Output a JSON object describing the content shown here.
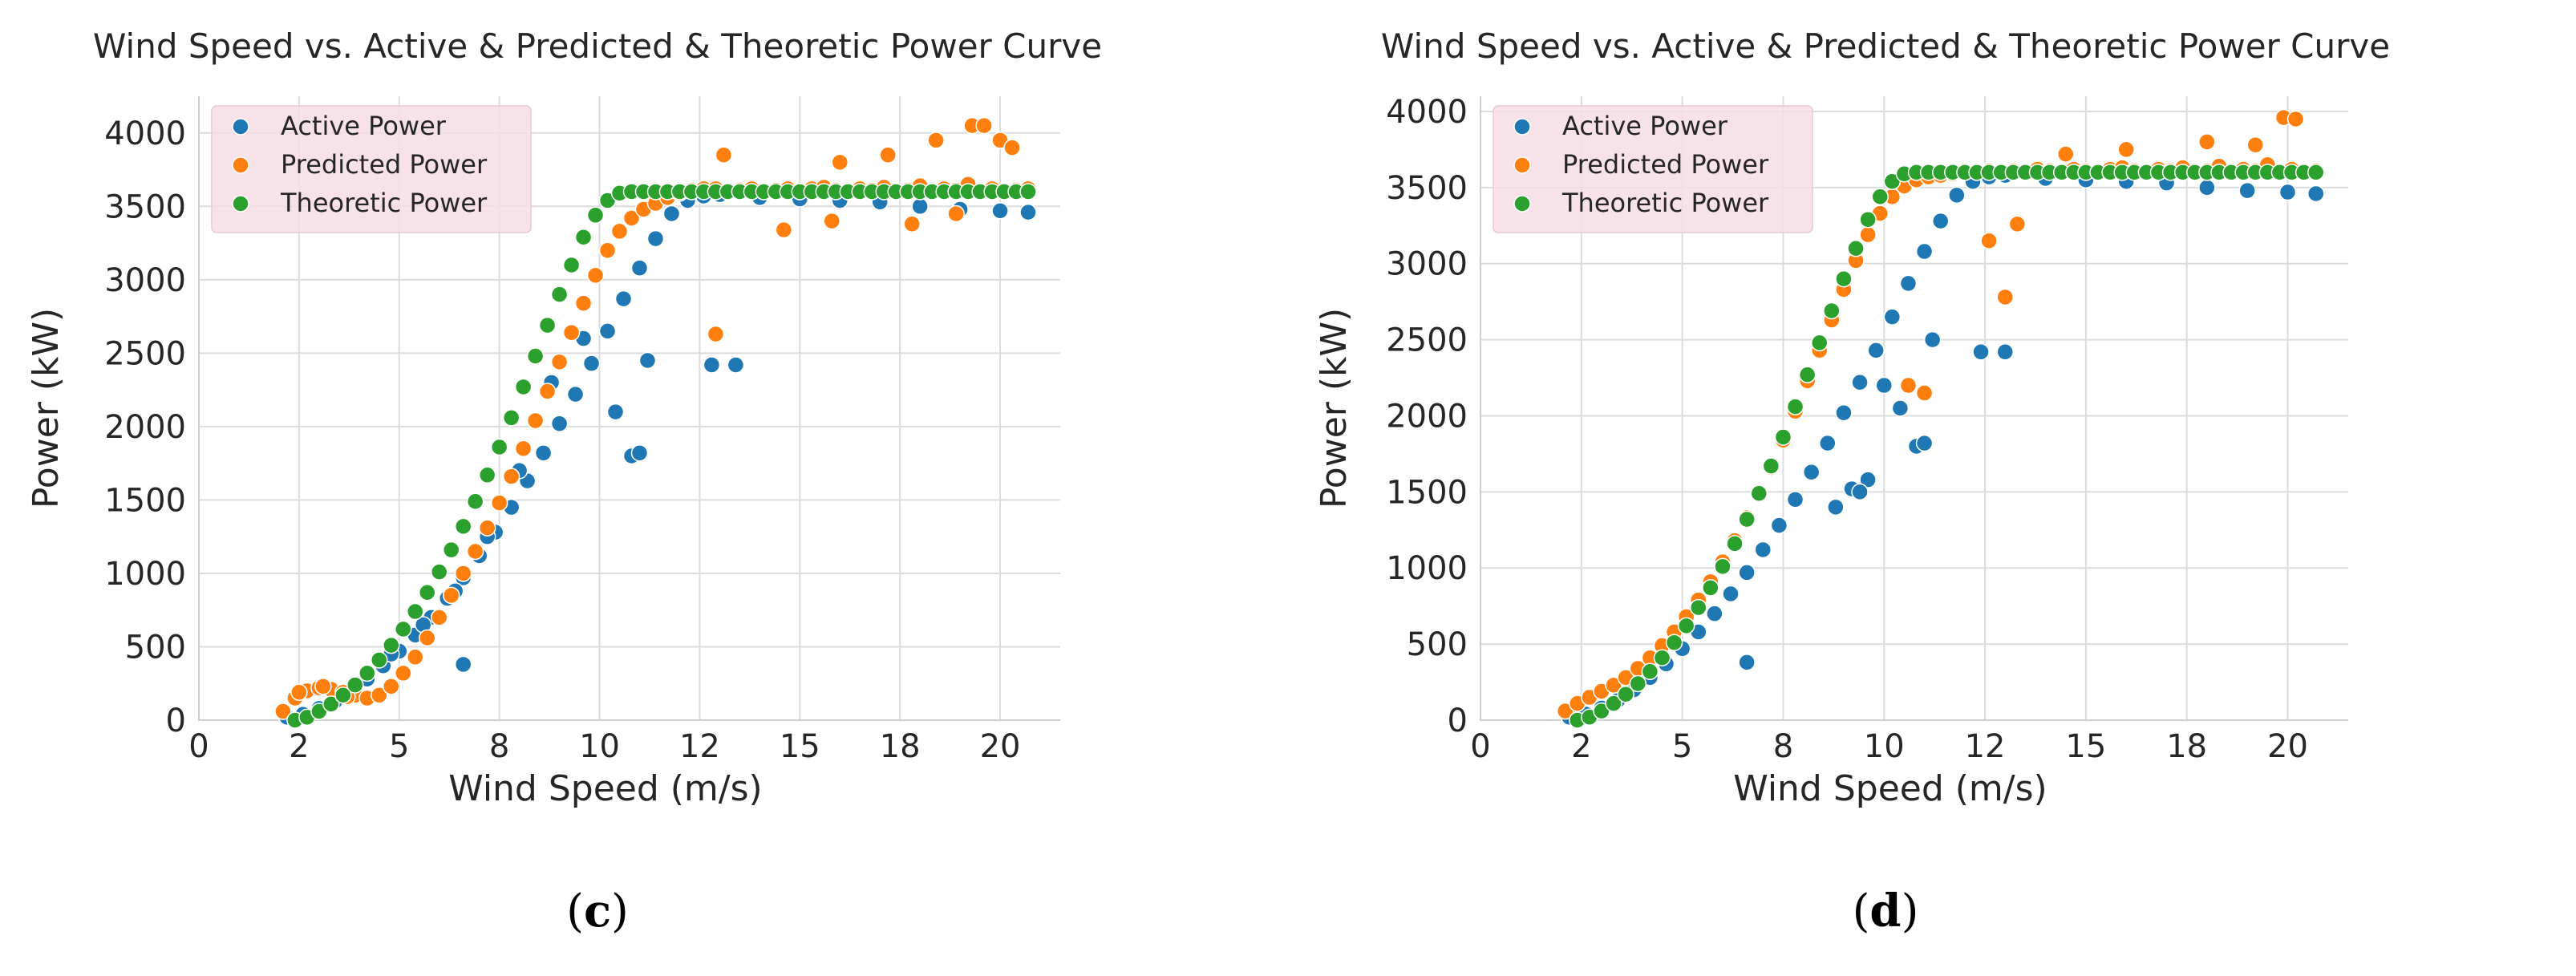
{
  "chart_data": [
    {
      "type": "scatter",
      "title": "Wind Speed vs. Active & Predicted & Theoretic Power Curve",
      "xlabel": "Wind Speed (m/s)",
      "ylabel": "Power (kW)",
      "panel_label": "c",
      "xlim": [
        0,
        21.5
      ],
      "ylim": [
        0,
        4250
      ],
      "xticks": [
        0,
        2.5,
        5,
        7.5,
        10,
        12.5,
        15,
        17.5,
        20
      ],
      "xticklabels": [
        "0",
        "2",
        "5",
        "8",
        "10",
        "12",
        "15",
        "18",
        "20"
      ],
      "yticks": [
        0,
        500,
        1000,
        1500,
        2000,
        2500,
        3000,
        3500,
        4000
      ],
      "yticklabels": [
        "0",
        "500",
        "1000",
        "1500",
        "2000",
        "2500",
        "3000",
        "3500",
        "4000"
      ],
      "grid": true,
      "legend_position": "top-left",
      "legend_bg": "#f7dde6",
      "series": [
        {
          "name": "Active Power",
          "color": "#1f77b4",
          "x": [
            2.2,
            2.6,
            3.0,
            3.4,
            3.8,
            4.2,
            4.6,
            5.0,
            5.4,
            5.8,
            6.2,
            6.6,
            7.0,
            7.4,
            7.8,
            8.2,
            8.6,
            9.0,
            9.4,
            9.8,
            10.2,
            10.6,
            11.0,
            11.4,
            11.8,
            12.2,
            12.6,
            13.0,
            14.0,
            15.0,
            16.0,
            17.0,
            18.0,
            19.0,
            20.0,
            20.7,
            4.8,
            5.6,
            6.4,
            7.2,
            8.0,
            8.8,
            9.6,
            10.4,
            10.8,
            11.0,
            11.2,
            12.8,
            13.4,
            6.6
          ],
          "y": [
            20,
            40,
            80,
            130,
            200,
            280,
            370,
            470,
            580,
            700,
            830,
            970,
            1120,
            1280,
            1450,
            1630,
            1820,
            2020,
            2220,
            2430,
            2650,
            2870,
            3080,
            3280,
            3450,
            3540,
            3570,
            3580,
            3560,
            3550,
            3540,
            3530,
            3500,
            3480,
            3470,
            3460,
            450,
            650,
            880,
            1250,
            1700,
            2300,
            2600,
            2100,
            1800,
            1820,
            2450,
            2420,
            2420,
            380
          ]
        },
        {
          "name": "Predicted Power",
          "color": "#ff7f0e",
          "x": [
            2.1,
            2.4,
            2.7,
            3.0,
            3.3,
            3.6,
            3.9,
            4.2,
            4.5,
            4.8,
            5.1,
            5.4,
            5.7,
            6.0,
            6.3,
            6.6,
            6.9,
            7.2,
            7.5,
            7.8,
            8.1,
            8.4,
            8.7,
            9.0,
            9.3,
            9.6,
            9.9,
            10.2,
            10.5,
            10.8,
            11.1,
            11.4,
            11.7,
            12.0,
            12.3,
            12.6,
            12.9,
            13.2,
            13.5,
            13.8,
            14.1,
            14.4,
            14.7,
            15.0,
            15.3,
            15.6,
            15.9,
            16.2,
            16.5,
            16.8,
            17.1,
            17.4,
            17.7,
            18.0,
            18.3,
            18.6,
            18.9,
            19.2,
            19.5,
            19.8,
            20.1,
            20.4,
            20.7,
            2.5,
            3.1,
            3.7,
            12.9,
            13.1,
            16.0,
            17.2,
            18.4,
            19.3,
            19.6,
            20.0,
            20.3,
            14.6,
            15.8,
            17.8,
            18.9
          ],
          "y": [
            60,
            150,
            200,
            220,
            210,
            190,
            170,
            150,
            170,
            230,
            320,
            430,
            560,
            700,
            850,
            1000,
            1150,
            1310,
            1480,
            1660,
            1850,
            2040,
            2240,
            2440,
            2640,
            2840,
            3030,
            3200,
            3330,
            3420,
            3480,
            3520,
            3560,
            3590,
            3610,
            3620,
            3620,
            3600,
            3610,
            3620,
            3600,
            3610,
            3620,
            3600,
            3620,
            3630,
            3610,
            3600,
            3620,
            3610,
            3630,
            3600,
            3610,
            3640,
            3600,
            3620,
            3610,
            3650,
            3600,
            3620,
            3600,
            3610,
            3620,
            190,
            230,
            160,
            2630,
            3850,
            3800,
            3850,
            3950,
            4050,
            4050,
            3950,
            3900,
            3340,
            3400,
            3380,
            3450
          ]
        },
        {
          "name": "Theoretic Power",
          "color": "#2ca02c",
          "x": [
            2.4,
            2.7,
            3.0,
            3.3,
            3.6,
            3.9,
            4.2,
            4.5,
            4.8,
            5.1,
            5.4,
            5.7,
            6.0,
            6.3,
            6.6,
            6.9,
            7.2,
            7.5,
            7.8,
            8.1,
            8.4,
            8.7,
            9.0,
            9.3,
            9.6,
            9.9,
            10.2,
            10.5,
            10.8,
            11.1,
            11.4,
            11.7,
            12.0,
            12.3,
            12.6,
            12.9,
            13.2,
            13.5,
            13.8,
            14.1,
            14.4,
            14.7,
            15.0,
            15.3,
            15.6,
            15.9,
            16.2,
            16.5,
            16.8,
            17.1,
            17.4,
            17.7,
            18.0,
            18.3,
            18.6,
            18.9,
            19.2,
            19.5,
            19.8,
            20.1,
            20.4,
            20.7
          ],
          "y": [
            0,
            20,
            60,
            110,
            170,
            240,
            320,
            410,
            510,
            620,
            740,
            870,
            1010,
            1160,
            1320,
            1490,
            1670,
            1860,
            2060,
            2270,
            2480,
            2690,
            2900,
            3100,
            3290,
            3440,
            3540,
            3590,
            3600,
            3600,
            3600,
            3600,
            3600,
            3600,
            3600,
            3600,
            3600,
            3600,
            3600,
            3600,
            3600,
            3600,
            3600,
            3600,
            3600,
            3600,
            3600,
            3600,
            3600,
            3600,
            3600,
            3600,
            3600,
            3600,
            3600,
            3600,
            3600,
            3600,
            3600,
            3600,
            3600,
            3600
          ]
        }
      ]
    },
    {
      "type": "scatter",
      "title": "Wind Speed vs. Active & Predicted & Theoretic Power Curve",
      "xlabel": "Wind Speed (m/s)",
      "ylabel": "Power (kW)",
      "panel_label": "d",
      "xlim": [
        0,
        21.5
      ],
      "ylim": [
        0,
        4100
      ],
      "xticks": [
        0,
        2.5,
        5,
        7.5,
        10,
        12.5,
        15,
        17.5,
        20
      ],
      "xticklabels": [
        "0",
        "2",
        "5",
        "8",
        "10",
        "12",
        "15",
        "18",
        "20"
      ],
      "yticks": [
        0,
        500,
        1000,
        1500,
        2000,
        2500,
        3000,
        3500,
        4000
      ],
      "yticklabels": [
        "0",
        "500",
        "1000",
        "1500",
        "2000",
        "2500",
        "3000",
        "3500",
        "4000"
      ],
      "grid": true,
      "legend_position": "top-left",
      "legend_bg": "#f7dde6",
      "series": [
        {
          "name": "Active Power",
          "color": "#1f77b4",
          "x": [
            2.2,
            2.6,
            3.0,
            3.4,
            3.8,
            4.2,
            4.6,
            5.0,
            5.4,
            5.8,
            6.2,
            6.6,
            7.0,
            7.4,
            7.8,
            8.2,
            8.6,
            9.0,
            9.4,
            9.8,
            10.2,
            10.6,
            11.0,
            11.4,
            11.8,
            12.2,
            12.6,
            13.0,
            14.0,
            15.0,
            16.0,
            17.0,
            18.0,
            19.0,
            20.0,
            20.7,
            6.6,
            8.8,
            9.2,
            9.6,
            10.0,
            10.4,
            10.8,
            11.0,
            11.2,
            12.4,
            13.0,
            9.4
          ],
          "y": [
            20,
            40,
            80,
            130,
            200,
            280,
            370,
            470,
            580,
            700,
            830,
            970,
            1120,
            1280,
            1450,
            1630,
            1820,
            2020,
            2220,
            2430,
            2650,
            2870,
            3080,
            3280,
            3450,
            3540,
            3570,
            3580,
            3560,
            3550,
            3540,
            3530,
            3500,
            3480,
            3470,
            3460,
            380,
            1400,
            1520,
            1580,
            2200,
            2050,
            1800,
            1820,
            2500,
            2420,
            2420,
            1500
          ]
        },
        {
          "name": "Predicted Power",
          "color": "#ff7f0e",
          "x": [
            2.1,
            2.4,
            2.7,
            3.0,
            3.3,
            3.6,
            3.9,
            4.2,
            4.5,
            4.8,
            5.1,
            5.4,
            5.7,
            6.0,
            6.3,
            6.6,
            6.9,
            7.2,
            7.5,
            7.8,
            8.1,
            8.4,
            8.7,
            9.0,
            9.3,
            9.6,
            9.9,
            10.2,
            10.5,
            10.8,
            11.1,
            11.4,
            11.7,
            12.0,
            12.3,
            12.6,
            12.9,
            13.2,
            13.5,
            13.8,
            14.1,
            14.4,
            14.7,
            15.0,
            15.3,
            15.6,
            15.9,
            16.2,
            16.5,
            16.8,
            17.1,
            17.4,
            17.7,
            18.0,
            18.3,
            18.6,
            18.9,
            19.2,
            19.5,
            19.8,
            20.1,
            20.4,
            20.7,
            13.0,
            12.6,
            13.3,
            14.5,
            16.0,
            18.0,
            19.2,
            19.9,
            20.2,
            11.0,
            10.6
          ],
          "y": [
            60,
            110,
            150,
            190,
            230,
            280,
            340,
            410,
            490,
            580,
            680,
            790,
            910,
            1040,
            1180,
            1330,
            1490,
            1660,
            1840,
            2030,
            2230,
            2430,
            2630,
            2830,
            3020,
            3190,
            3330,
            3440,
            3510,
            3550,
            3570,
            3580,
            3590,
            3600,
            3600,
            3610,
            3600,
            3610,
            3600,
            3620,
            3610,
            3600,
            3620,
            3610,
            3600,
            3620,
            3630,
            3610,
            3600,
            3620,
            3610,
            3630,
            3600,
            3610,
            3640,
            3600,
            3620,
            3610,
            3650,
            3600,
            3620,
            3600,
            3610,
            2780,
            3150,
            3260,
            3720,
            3750,
            3800,
            3780,
            3960,
            3950,
            2150,
            2200
          ]
        },
        {
          "name": "Theoretic Power",
          "color": "#2ca02c",
          "x": [
            2.4,
            2.7,
            3.0,
            3.3,
            3.6,
            3.9,
            4.2,
            4.5,
            4.8,
            5.1,
            5.4,
            5.7,
            6.0,
            6.3,
            6.6,
            6.9,
            7.2,
            7.5,
            7.8,
            8.1,
            8.4,
            8.7,
            9.0,
            9.3,
            9.6,
            9.9,
            10.2,
            10.5,
            10.8,
            11.1,
            11.4,
            11.7,
            12.0,
            12.3,
            12.6,
            12.9,
            13.2,
            13.5,
            13.8,
            14.1,
            14.4,
            14.7,
            15.0,
            15.3,
            15.6,
            15.9,
            16.2,
            16.5,
            16.8,
            17.1,
            17.4,
            17.7,
            18.0,
            18.3,
            18.6,
            18.9,
            19.2,
            19.5,
            19.8,
            20.1,
            20.4,
            20.7
          ],
          "y": [
            0,
            20,
            60,
            110,
            170,
            240,
            320,
            410,
            510,
            620,
            740,
            870,
            1010,
            1160,
            1320,
            1490,
            1670,
            1860,
            2060,
            2270,
            2480,
            2690,
            2900,
            3100,
            3290,
            3440,
            3540,
            3590,
            3600,
            3600,
            3600,
            3600,
            3600,
            3600,
            3600,
            3600,
            3600,
            3600,
            3600,
            3600,
            3600,
            3600,
            3600,
            3600,
            3600,
            3600,
            3600,
            3600,
            3600,
            3600,
            3600,
            3600,
            3600,
            3600,
            3600,
            3600,
            3600,
            3600,
            3600,
            3600,
            3600,
            3600
          ]
        }
      ]
    }
  ]
}
